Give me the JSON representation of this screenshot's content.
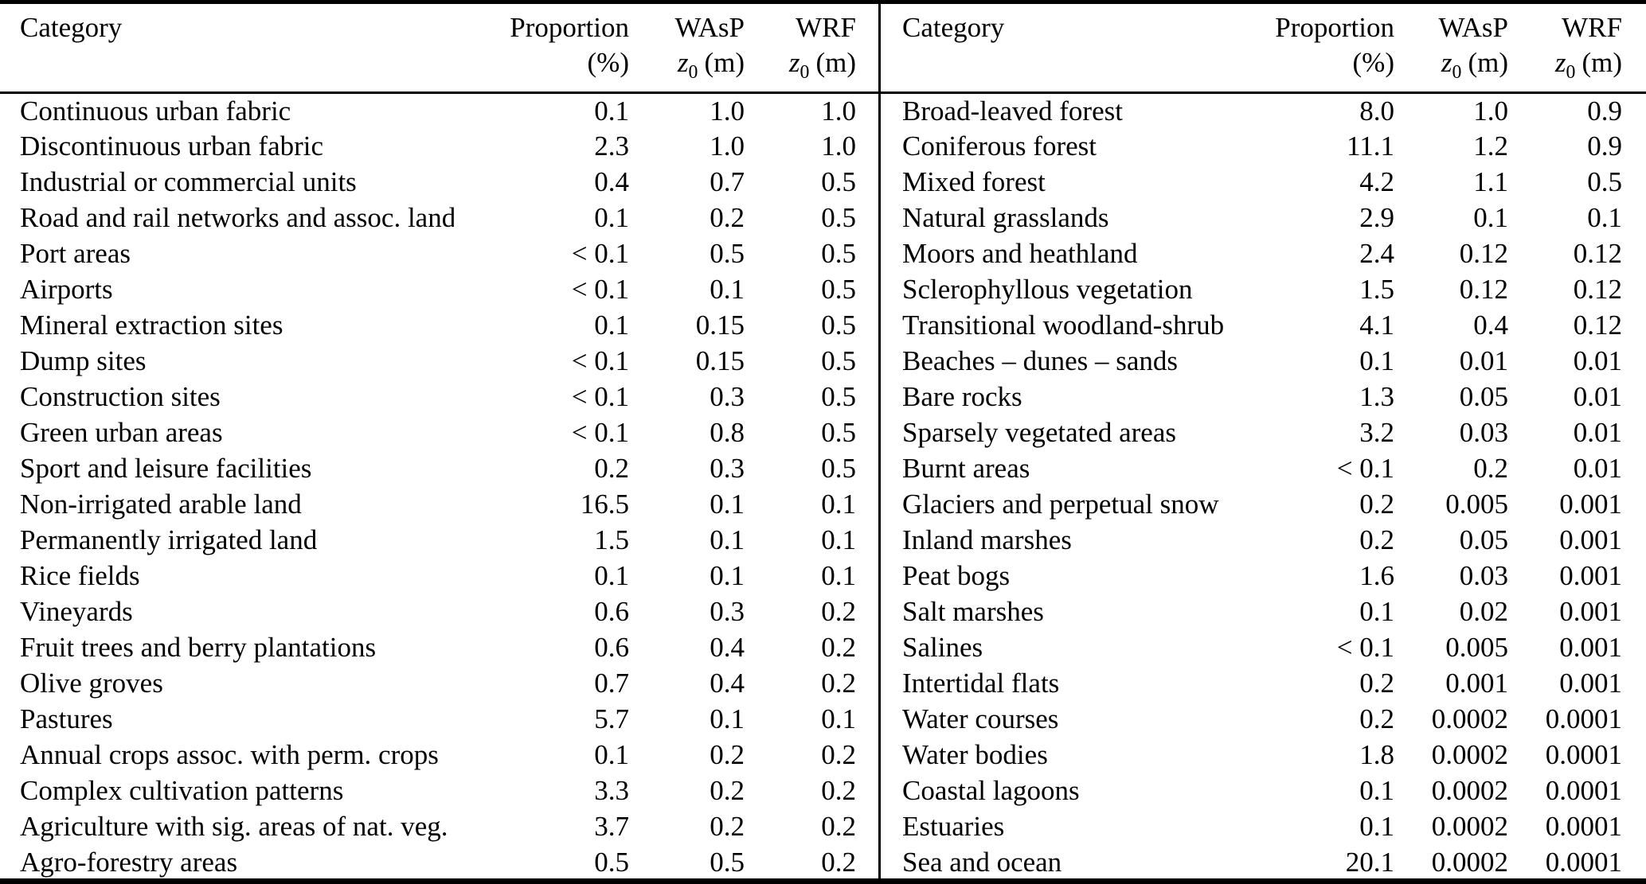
{
  "colors": {
    "background": "#ffffff",
    "text": "#000000",
    "rule": "#000000"
  },
  "table": {
    "headers": {
      "category": "Category",
      "proportion": "Proportion",
      "percent_unit": "(%)",
      "wasp": "WAsP",
      "wrf": "WRF",
      "z_symbol": "z",
      "z_sub": "0",
      "z_unit": "(m)"
    },
    "left_rows": [
      {
        "category": "Continuous urban fabric",
        "proportion": "0.1",
        "wasp": "1.0",
        "wrf": "1.0"
      },
      {
        "category": "Discontinuous urban fabric",
        "proportion": "2.3",
        "wasp": "1.0",
        "wrf": "1.0"
      },
      {
        "category": "Industrial or commercial units",
        "proportion": "0.4",
        "wasp": "0.7",
        "wrf": "0.5"
      },
      {
        "category": "Road and rail networks and assoc. land",
        "proportion": "0.1",
        "wasp": "0.2",
        "wrf": "0.5"
      },
      {
        "category": "Port areas",
        "proportion": "< 0.1",
        "wasp": "0.5",
        "wrf": "0.5"
      },
      {
        "category": "Airports",
        "proportion": "< 0.1",
        "wasp": "0.1",
        "wrf": "0.5"
      },
      {
        "category": "Mineral extraction sites",
        "proportion": "0.1",
        "wasp": "0.15",
        "wrf": "0.5"
      },
      {
        "category": "Dump sites",
        "proportion": "< 0.1",
        "wasp": "0.15",
        "wrf": "0.5"
      },
      {
        "category": "Construction sites",
        "proportion": "< 0.1",
        "wasp": "0.3",
        "wrf": "0.5"
      },
      {
        "category": "Green urban areas",
        "proportion": "< 0.1",
        "wasp": "0.8",
        "wrf": "0.5"
      },
      {
        "category": "Sport and leisure facilities",
        "proportion": "0.2",
        "wasp": "0.3",
        "wrf": "0.5"
      },
      {
        "category": "Non-irrigated arable land",
        "proportion": "16.5",
        "wasp": "0.1",
        "wrf": "0.1"
      },
      {
        "category": "Permanently irrigated land",
        "proportion": "1.5",
        "wasp": "0.1",
        "wrf": "0.1"
      },
      {
        "category": "Rice fields",
        "proportion": "0.1",
        "wasp": "0.1",
        "wrf": "0.1"
      },
      {
        "category": "Vineyards",
        "proportion": "0.6",
        "wasp": "0.3",
        "wrf": "0.2"
      },
      {
        "category": "Fruit trees and berry plantations",
        "proportion": "0.6",
        "wasp": "0.4",
        "wrf": "0.2"
      },
      {
        "category": "Olive groves",
        "proportion": "0.7",
        "wasp": "0.4",
        "wrf": "0.2"
      },
      {
        "category": "Pastures",
        "proportion": "5.7",
        "wasp": "0.1",
        "wrf": "0.1"
      },
      {
        "category": "Annual crops assoc. with perm. crops",
        "proportion": "0.1",
        "wasp": "0.2",
        "wrf": "0.2"
      },
      {
        "category": "Complex cultivation patterns",
        "proportion": "3.3",
        "wasp": "0.2",
        "wrf": "0.2"
      },
      {
        "category": "Agriculture with sig. areas of nat. veg.",
        "proportion": "3.7",
        "wasp": "0.2",
        "wrf": "0.2"
      },
      {
        "category": "Agro-forestry areas",
        "proportion": "0.5",
        "wasp": "0.5",
        "wrf": "0.2"
      }
    ],
    "right_rows": [
      {
        "category": "Broad-leaved forest",
        "proportion": "8.0",
        "wasp": "1.0",
        "wrf": "0.9"
      },
      {
        "category": "Coniferous forest",
        "proportion": "11.1",
        "wasp": "1.2",
        "wrf": "0.9"
      },
      {
        "category": "Mixed forest",
        "proportion": "4.2",
        "wasp": "1.1",
        "wrf": "0.5"
      },
      {
        "category": "Natural grasslands",
        "proportion": "2.9",
        "wasp": "0.1",
        "wrf": "0.1"
      },
      {
        "category": "Moors and heathland",
        "proportion": "2.4",
        "wasp": "0.12",
        "wrf": "0.12"
      },
      {
        "category": "Sclerophyllous vegetation",
        "proportion": "1.5",
        "wasp": "0.12",
        "wrf": "0.12"
      },
      {
        "category": "Transitional woodland-shrub",
        "proportion": "4.1",
        "wasp": "0.4",
        "wrf": "0.12"
      },
      {
        "category": "Beaches – dunes – sands",
        "proportion": "0.1",
        "wasp": "0.01",
        "wrf": "0.01"
      },
      {
        "category": "Bare rocks",
        "proportion": "1.3",
        "wasp": "0.05",
        "wrf": "0.01"
      },
      {
        "category": "Sparsely vegetated areas",
        "proportion": "3.2",
        "wasp": "0.03",
        "wrf": "0.01"
      },
      {
        "category": "Burnt areas",
        "proportion": "< 0.1",
        "wasp": "0.2",
        "wrf": "0.01"
      },
      {
        "category": "Glaciers and perpetual snow",
        "proportion": "0.2",
        "wasp": "0.005",
        "wrf": "0.001"
      },
      {
        "category": "Inland marshes",
        "proportion": "0.2",
        "wasp": "0.05",
        "wrf": "0.001"
      },
      {
        "category": "Peat bogs",
        "proportion": "1.6",
        "wasp": "0.03",
        "wrf": "0.001"
      },
      {
        "category": "Salt marshes",
        "proportion": "0.1",
        "wasp": "0.02",
        "wrf": "0.001"
      },
      {
        "category": "Salines",
        "proportion": "< 0.1",
        "wasp": "0.005",
        "wrf": "0.001"
      },
      {
        "category": "Intertidal flats",
        "proportion": "0.2",
        "wasp": "0.001",
        "wrf": "0.001"
      },
      {
        "category": "Water courses",
        "proportion": "0.2",
        "wasp": "0.0002",
        "wrf": "0.0001"
      },
      {
        "category": "Water bodies",
        "proportion": "1.8",
        "wasp": "0.0002",
        "wrf": "0.0001"
      },
      {
        "category": "Coastal lagoons",
        "proportion": "0.1",
        "wasp": "0.0002",
        "wrf": "0.0001"
      },
      {
        "category": "Estuaries",
        "proportion": "0.1",
        "wasp": "0.0002",
        "wrf": "0.0001"
      },
      {
        "category": "Sea and ocean",
        "proportion": "20.1",
        "wasp": "0.0002",
        "wrf": "0.0001"
      }
    ]
  }
}
